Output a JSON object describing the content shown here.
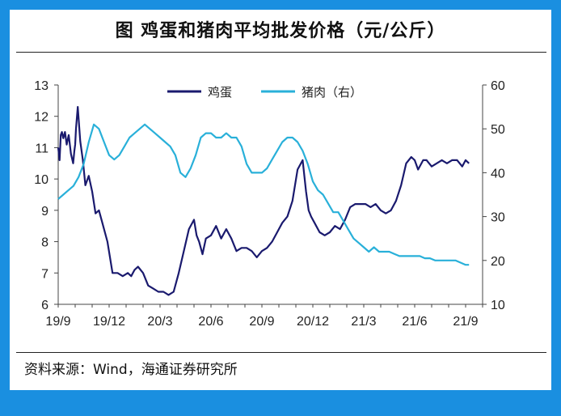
{
  "title": "图  鸡蛋和猪肉平均批发价格（元/公斤）",
  "source": "资料来源：Wind，海通证券研究所",
  "chart_data": {
    "type": "line",
    "x_labels": [
      "19/9",
      "19/12",
      "20/3",
      "20/6",
      "20/9",
      "20/12",
      "21/3",
      "21/6",
      "21/9"
    ],
    "x_range": [
      "2019-09",
      "2021-10"
    ],
    "y_left": {
      "ticks": [
        6,
        7,
        8,
        9,
        10,
        11,
        12,
        13
      ],
      "ylim": [
        6,
        13
      ]
    },
    "y_right": {
      "ticks": [
        10,
        20,
        30,
        40,
        50,
        60
      ],
      "ylim": [
        10,
        60
      ]
    },
    "legend_position": "top-center",
    "grid": false,
    "series": [
      {
        "name": "鸡蛋",
        "axis": "left",
        "color": "#1a1a6e",
        "x": [
          0.0,
          0.08,
          0.15,
          0.22,
          0.3,
          0.4,
          0.5,
          0.62,
          0.75,
          0.88,
          0.95,
          1.0,
          1.05,
          1.15,
          1.3,
          1.45,
          1.6,
          1.8,
          2.0,
          2.2,
          2.4,
          2.6,
          2.9,
          3.2,
          3.5,
          3.8,
          4.1,
          4.3,
          4.5,
          4.7,
          5.0,
          5.3,
          5.6,
          5.9,
          6.2,
          6.5,
          6.8,
          7.1,
          7.4,
          7.7,
          8.0,
          8.15,
          8.3,
          8.5,
          8.7,
          9.0,
          9.3,
          9.6,
          9.9,
          10.2,
          10.5,
          10.8,
          11.1,
          11.4,
          11.7,
          12.0,
          12.3,
          12.6,
          12.9,
          13.2,
          13.5,
          13.8,
          14.1,
          14.4,
          14.6,
          14.75,
          14.9,
          15.1,
          15.4,
          15.7,
          16.0,
          16.3,
          16.6,
          16.9,
          17.2,
          17.5,
          17.8,
          18.1,
          18.4,
          18.7,
          19.0,
          19.3,
          19.6,
          19.9,
          20.2,
          20.5,
          20.8,
          21.0,
          21.2,
          21.5,
          21.7,
          22.0,
          22.3,
          22.6,
          22.9,
          23.2,
          23.5,
          23.8,
          24.0,
          24.2
        ],
        "values": [
          11.0,
          10.6,
          11.4,
          11.5,
          11.3,
          11.5,
          11.1,
          11.4,
          10.8,
          10.5,
          10.9,
          11.1,
          11.6,
          12.3,
          11.2,
          10.6,
          9.8,
          10.1,
          9.6,
          8.9,
          9.0,
          8.6,
          8.0,
          7.0,
          7.0,
          6.9,
          7.0,
          6.9,
          7.1,
          7.2,
          7.0,
          6.6,
          6.5,
          6.4,
          6.4,
          6.3,
          6.4,
          7.0,
          7.7,
          8.4,
          8.7,
          8.2,
          8.0,
          7.6,
          8.1,
          8.2,
          8.5,
          8.1,
          8.4,
          8.1,
          7.7,
          7.8,
          7.8,
          7.7,
          7.5,
          7.7,
          7.8,
          8.0,
          8.3,
          8.6,
          8.8,
          9.3,
          10.3,
          10.6,
          9.6,
          9.0,
          8.8,
          8.6,
          8.3,
          8.2,
          8.3,
          8.5,
          8.4,
          8.7,
          9.1,
          9.2,
          9.2,
          9.2,
          9.1,
          9.2,
          9.0,
          8.9,
          9.0,
          9.3,
          9.8,
          10.5,
          10.7,
          10.6,
          10.3,
          10.6,
          10.6,
          10.4,
          10.5,
          10.6,
          10.5,
          10.6,
          10.6,
          10.4,
          10.6,
          10.5
        ]
      },
      {
        "name": "猪肉（右）",
        "axis": "right",
        "color": "#29b0d9",
        "x": [
          0.0,
          0.3,
          0.6,
          0.9,
          1.2,
          1.5,
          1.8,
          2.1,
          2.4,
          2.7,
          3.0,
          3.3,
          3.6,
          3.9,
          4.2,
          4.5,
          4.8,
          5.1,
          5.4,
          5.7,
          6.0,
          6.3,
          6.6,
          6.9,
          7.2,
          7.5,
          7.8,
          8.1,
          8.4,
          8.7,
          9.0,
          9.3,
          9.6,
          9.9,
          10.2,
          10.5,
          10.8,
          11.1,
          11.4,
          11.7,
          12.0,
          12.3,
          12.6,
          12.9,
          13.2,
          13.5,
          13.8,
          14.1,
          14.4,
          14.7,
          15.0,
          15.3,
          15.6,
          15.9,
          16.2,
          16.5,
          16.8,
          17.1,
          17.4,
          17.7,
          18.0,
          18.3,
          18.6,
          18.9,
          19.2,
          19.5,
          19.8,
          20.1,
          20.4,
          20.7,
          21.0,
          21.3,
          21.6,
          21.9,
          22.2,
          22.5,
          22.8,
          23.1,
          23.4,
          23.7,
          24.0,
          24.2
        ],
        "values": [
          34,
          35,
          36,
          37,
          39,
          42,
          47,
          51,
          50,
          47,
          44,
          43,
          44,
          46,
          48,
          49,
          50,
          51,
          50,
          49,
          48,
          47,
          46,
          44,
          40,
          39,
          41,
          44,
          48,
          49,
          49,
          48,
          48,
          49,
          48,
          48,
          46,
          42,
          40,
          40,
          40,
          41,
          43,
          45,
          47,
          48,
          48,
          47,
          45,
          42,
          38,
          36,
          35,
          33,
          31,
          31,
          29,
          27,
          25,
          24,
          23,
          22,
          23,
          22,
          22,
          22,
          21.5,
          21,
          21,
          21,
          21,
          21,
          20.5,
          20.5,
          20,
          20,
          20,
          20,
          20,
          19.5,
          19,
          19
        ]
      }
    ]
  }
}
